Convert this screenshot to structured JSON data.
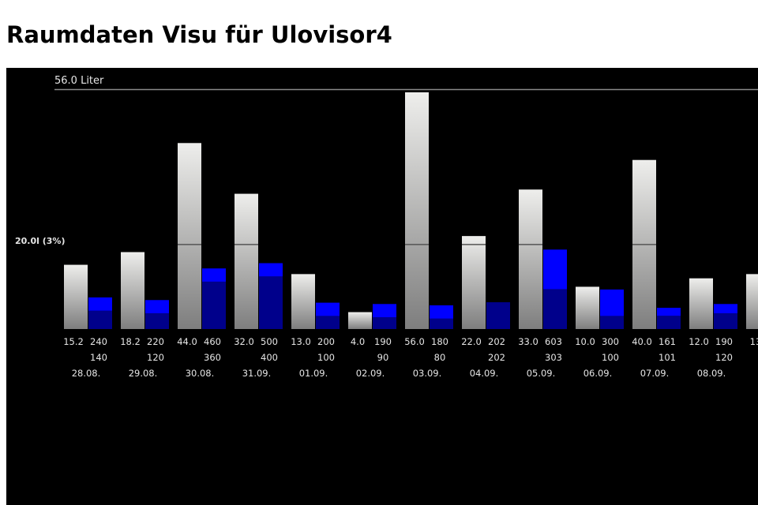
{
  "page": {
    "title": "Raumdaten Visu für Ulovisor4"
  },
  "colors": {
    "background": "#000000",
    "bar_gray_top": "#eeeeec",
    "bar_gray_bottom": "#7e7e7e",
    "bar_blue_light": "#0000ff",
    "bar_blue_dark": "#00008b",
    "text": "#e6e6e6",
    "line": "#8a8a8a"
  },
  "chart_data": {
    "type": "bar",
    "max_label": "56.0 Liter",
    "reference_label": "20.0l (3%)",
    "ylim": [
      0,
      56
    ],
    "max_value": 56.0,
    "reference_value": 20.0,
    "categories": [
      "28.08.",
      "29.08.",
      "30.08.",
      "31.09.",
      "01.09.",
      "02.09.",
      "03.09.",
      "04.09.",
      "05.09.",
      "06.09.",
      "07.09.",
      "08.09.",
      ""
    ],
    "series": [
      {
        "values": [
          15.2,
          18.2,
          44.0,
          32.0,
          13.0,
          4.0,
          56.0,
          22.0,
          33.0,
          10.0,
          40.0,
          12.0,
          13
        ],
        "labels": [
          "15.2",
          "18.2",
          "44.0",
          "32.0",
          "13.0",
          "4.0",
          "56.0",
          "22.0",
          "33.0",
          "10.0",
          "40.0",
          "12.0",
          "13"
        ]
      },
      {
        "values": [
          240,
          220,
          460,
          500,
          200,
          190,
          180,
          202,
          603,
          300,
          161,
          190,
          null
        ],
        "labels": [
          "240",
          "220",
          "460",
          "500",
          "200",
          "190",
          "180",
          "202",
          "603",
          "300",
          "161",
          "190",
          ""
        ]
      },
      {
        "values": [
          140,
          120,
          360,
          400,
          100,
          90,
          80,
          202,
          303,
          100,
          101,
          120,
          null
        ],
        "labels": [
          "140",
          "120",
          "360",
          "400",
          "100",
          "90",
          "80",
          "202",
          "303",
          "100",
          "101",
          "120",
          ""
        ]
      }
    ]
  }
}
